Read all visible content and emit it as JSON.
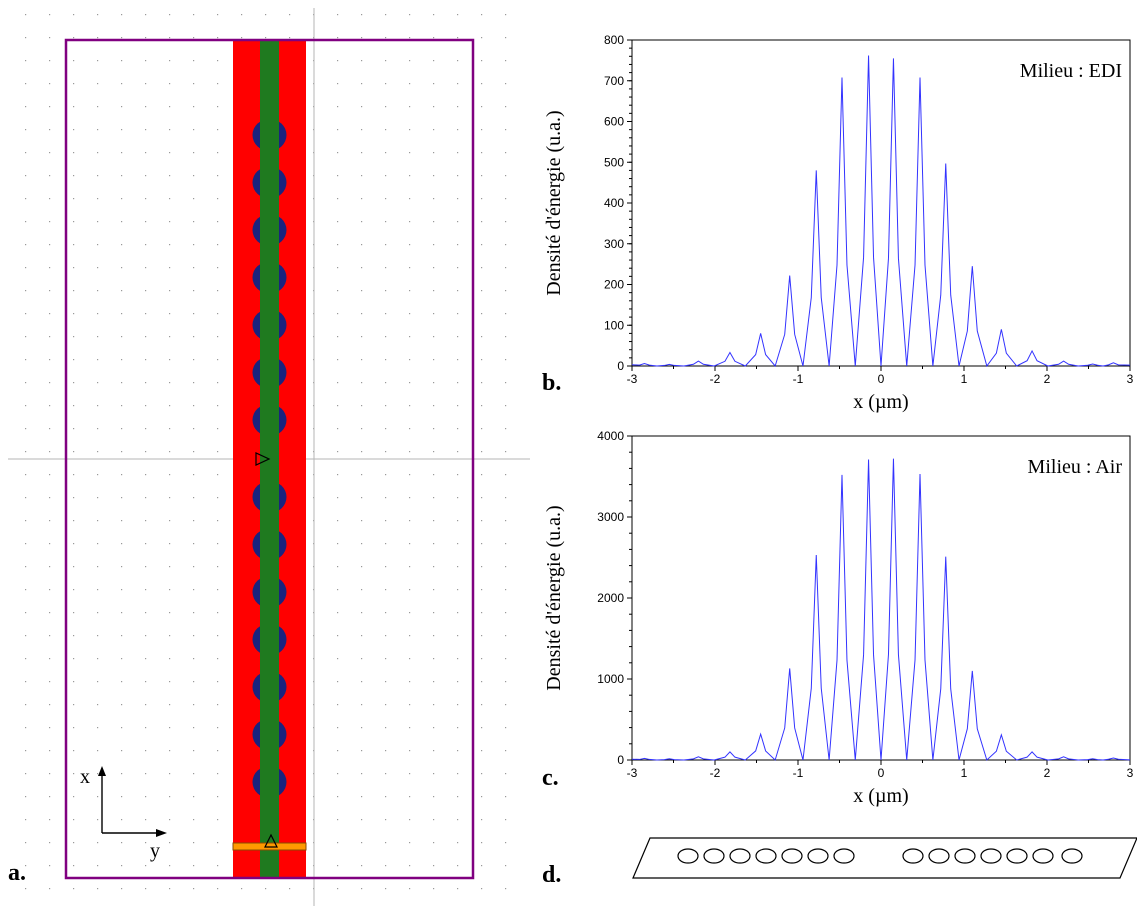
{
  "panels": {
    "a": {
      "letter": "a.",
      "axis_x_label": "x",
      "axis_y_label": "y",
      "colors": {
        "frame": "#800080",
        "cladding": "#ff0000",
        "core": "#1f7a1f",
        "holes": "#1a237e",
        "source": "#ff9900",
        "grid_dots": "#999999"
      }
    },
    "b": {
      "letter": "b."
    },
    "c": {
      "letter": "c."
    },
    "d": {
      "letter": "d."
    }
  },
  "chart_data": [
    {
      "type": "line",
      "panel": "b",
      "annotation": "Milieu : EDI",
      "xlabel": "x (µm)",
      "ylabel": "Densité d'énergie (u.a.)",
      "xlim": [
        -3,
        3
      ],
      "ylim": [
        0,
        800
      ],
      "xticks": [
        -3,
        -2,
        -1,
        0,
        1,
        2,
        3
      ],
      "yticks": [
        0,
        100,
        200,
        300,
        400,
        500,
        600,
        700,
        800
      ],
      "line_color": "#3333ff",
      "peaks": [
        [
          -2.85,
          6
        ],
        [
          -2.55,
          4
        ],
        [
          -2.2,
          12
        ],
        [
          -1.82,
          33
        ],
        [
          -1.45,
          80
        ],
        [
          -1.1,
          222
        ],
        [
          -0.78,
          480
        ],
        [
          -0.47,
          708
        ],
        [
          -0.15,
          762
        ],
        [
          0.15,
          755
        ],
        [
          0.47,
          708
        ],
        [
          0.78,
          497
        ],
        [
          1.1,
          245
        ],
        [
          1.45,
          90
        ],
        [
          1.82,
          37
        ],
        [
          2.2,
          12
        ],
        [
          2.55,
          5
        ],
        [
          2.8,
          8
        ]
      ]
    },
    {
      "type": "line",
      "panel": "c",
      "annotation": "Milieu : Air",
      "xlabel": "x (µm)",
      "ylabel": "Densité d'énergie (u.a.)",
      "xlim": [
        -3,
        3
      ],
      "ylim": [
        0,
        4000
      ],
      "xticks": [
        -3,
        -2,
        -1,
        0,
        1,
        2,
        3
      ],
      "yticks": [
        0,
        1000,
        2000,
        3000,
        4000
      ],
      "line_color": "#3333ff",
      "peaks": [
        [
          -2.85,
          20
        ],
        [
          -2.55,
          15
        ],
        [
          -2.2,
          40
        ],
        [
          -1.82,
          100
        ],
        [
          -1.45,
          320
        ],
        [
          -1.1,
          1130
        ],
        [
          -0.78,
          2530
        ],
        [
          -0.47,
          3520
        ],
        [
          -0.15,
          3710
        ],
        [
          0.15,
          3720
        ],
        [
          0.47,
          3530
        ],
        [
          0.78,
          2510
        ],
        [
          1.1,
          1100
        ],
        [
          1.45,
          310
        ],
        [
          1.82,
          100
        ],
        [
          2.2,
          40
        ],
        [
          2.55,
          15
        ],
        [
          2.8,
          25
        ]
      ]
    }
  ]
}
